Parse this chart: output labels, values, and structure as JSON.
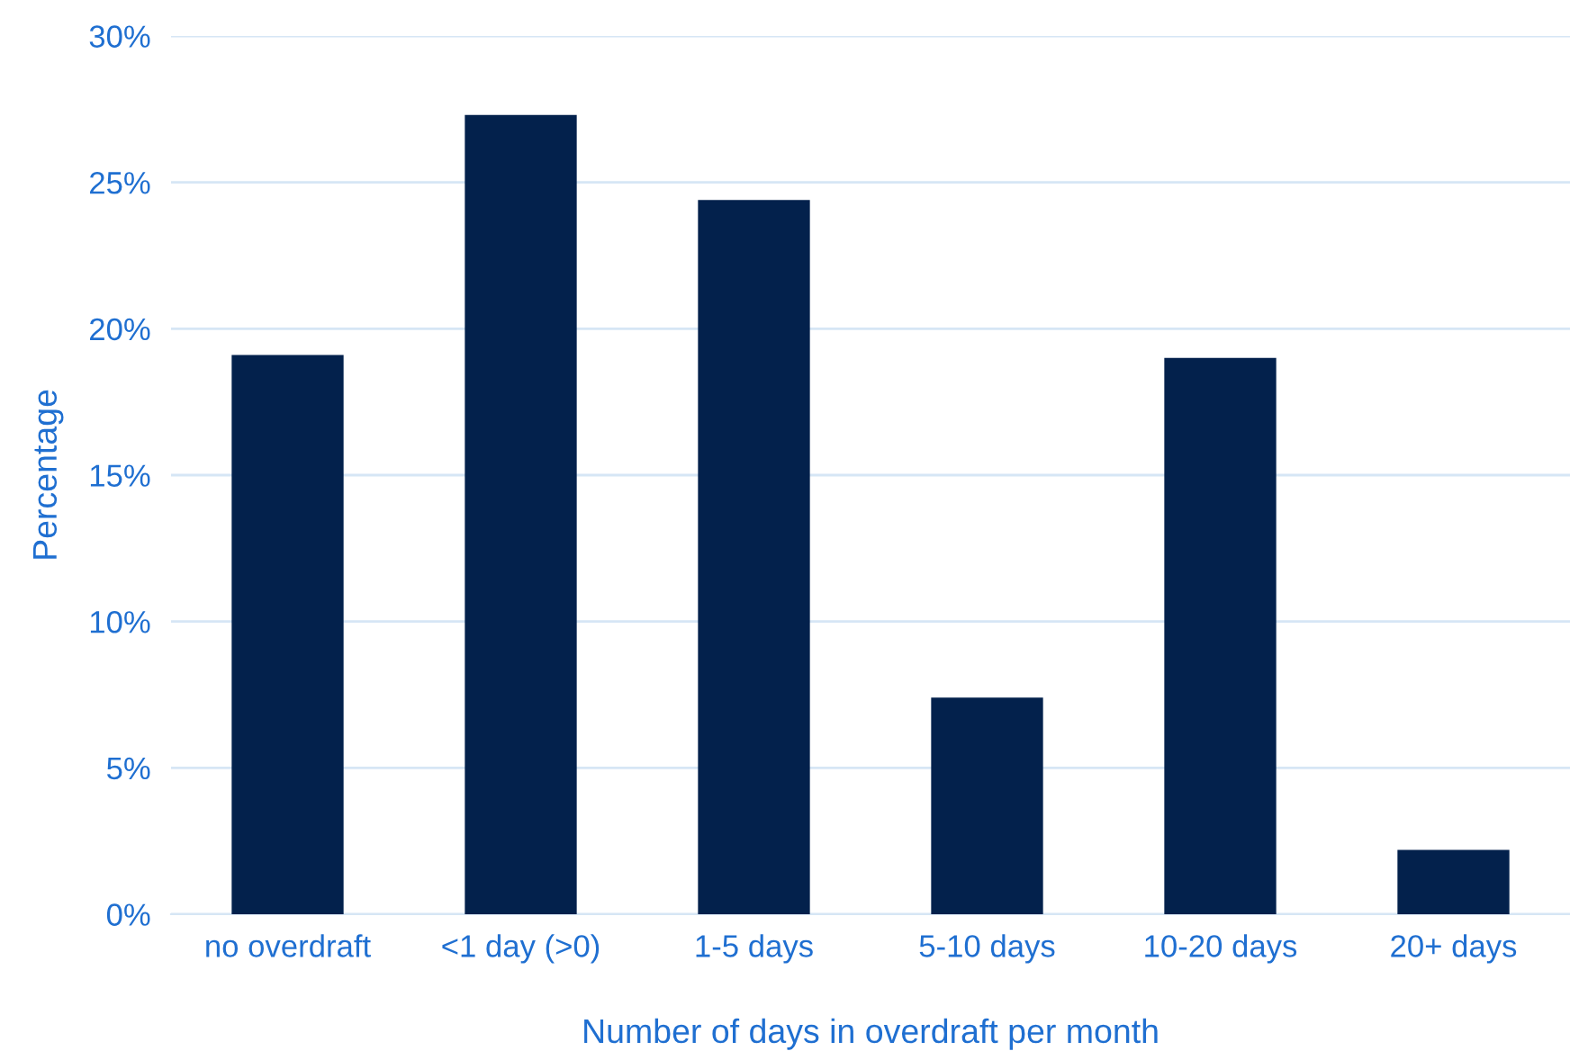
{
  "chart_data": {
    "type": "bar",
    "xlabel": "Number of days in overdraft per month",
    "ylabel": "Percentage",
    "categories": [
      "no overdraft",
      "<1 day (>0)",
      "1-5 days",
      "5-10 days",
      "10-20 days",
      "20+ days"
    ],
    "values": [
      19.1,
      27.3,
      24.4,
      7.4,
      19.0,
      2.2
    ],
    "color": "#03214c",
    "ylim": [
      0,
      30
    ],
    "yticks": [
      {
        "value": 0,
        "label": "0%"
      },
      {
        "value": 5,
        "label": "5%"
      },
      {
        "value": 10,
        "label": "10%"
      },
      {
        "value": 15,
        "label": "15%"
      },
      {
        "value": 20,
        "label": "20%"
      },
      {
        "value": 25,
        "label": "25%"
      },
      {
        "value": 30,
        "label": "30%"
      }
    ],
    "grid": "y",
    "legend": false
  }
}
